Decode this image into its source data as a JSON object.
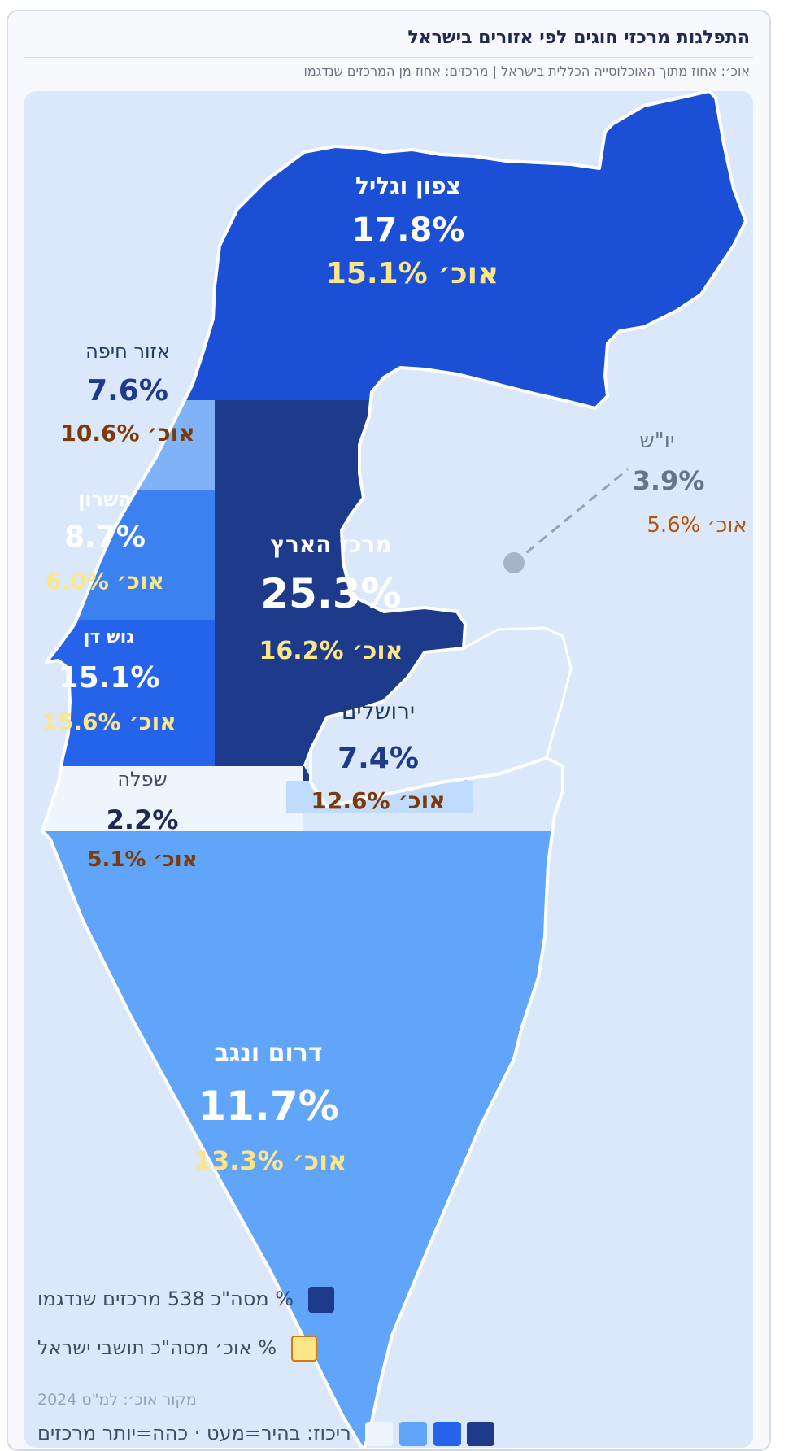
{
  "header": {
    "title": "התפלגות מרכזי חוגים לפי אזורים בישראל",
    "subtitle": "אוכ׳: אחוז מתוך האוכלוסייה הכללית בישראל  |  מרכזים: אחוז מן המרכזים שנדגמו"
  },
  "regions": [
    {
      "id": "north",
      "name": "צפון וגליל",
      "pct": "17.8%",
      "pop": "אוכ׳ 15.1%",
      "fill": "#1a4fd6"
    },
    {
      "id": "haifa",
      "name": "אזור חיפה",
      "pct": "7.6%",
      "pop": "אוכ׳ 10.6%",
      "fill": "#7fb2f6"
    },
    {
      "id": "sharon",
      "name": "השרון",
      "pct": "8.7%",
      "pop": "אוכ׳ 6.0%",
      "fill": "#3b82f0"
    },
    {
      "id": "center",
      "name": "מרכז הארץ",
      "pct": "25.3%",
      "pop": "אוכ׳ 16.2%",
      "fill": "#1e3a8a"
    },
    {
      "id": "gushdan",
      "name": "גוש דן",
      "pct": "15.1%",
      "pop": "אוכ׳ 15.6%",
      "fill": "#2563eb"
    },
    {
      "id": "jerusalem",
      "name": "ירושלים",
      "pct": "7.4%",
      "pop": "אוכ׳ 12.6%",
      "fill": "#dbe8fb"
    },
    {
      "id": "shfela",
      "name": "שפלה",
      "pct": "2.2%",
      "pop": "אוכ׳ 5.1%",
      "fill": "#eff5fd"
    },
    {
      "id": "judea",
      "name": "יו\"ש",
      "pct": "3.9%",
      "pop": "אוכ׳ 5.6%",
      "fill": "#dbe8fb"
    },
    {
      "id": "south",
      "name": "דרום ונגב",
      "pct": "11.7%",
      "pop": "אוכ׳ 13.3%",
      "fill": "#60a5fa"
    }
  ],
  "legend": {
    "centers": "% מסה\"כ 538 מרכזים שנדגמו",
    "population": "% אוכ׳ מסה\"כ תושבי ישראל",
    "source": "מקור אוכ׳: למ\"ס 2024",
    "scale": "ריכוז: בהיר=מעט · כהה=יותר מרכזים",
    "centers_color": "#1e3a8a",
    "population_color": "#fde68a",
    "scale_colors": [
      "#1e3a8a",
      "#2563eb",
      "#60a5fa",
      "#eff5fd"
    ]
  }
}
